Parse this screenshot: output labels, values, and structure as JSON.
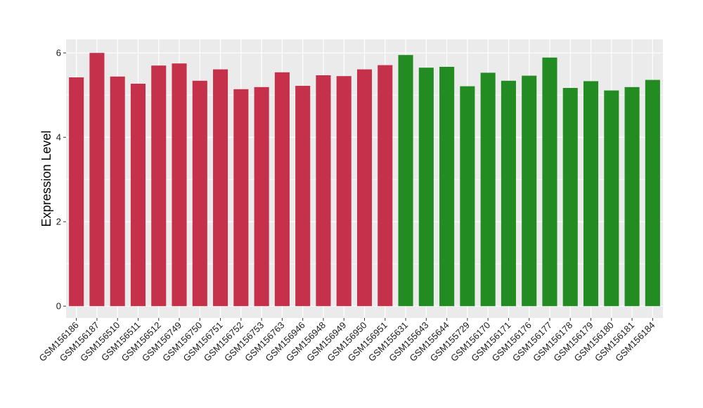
{
  "chart_data": {
    "type": "bar",
    "title": "",
    "xlabel": "",
    "ylabel": "Expression Level",
    "ylim": [
      -0.28,
      6.32
    ],
    "yticks": [
      0,
      2,
      4,
      6
    ],
    "grid": true,
    "legend": "none",
    "categories": [
      "GSM156186",
      "GSM156187",
      "GSM156510",
      "GSM156511",
      "GSM156512",
      "GSM156749",
      "GSM156750",
      "GSM156751",
      "GSM156752",
      "GSM156753",
      "GSM156763",
      "GSM156946",
      "GSM156948",
      "GSM156949",
      "GSM156950",
      "GSM156951",
      "GSM155631",
      "GSM155643",
      "GSM155644",
      "GSM155729",
      "GSM156170",
      "GSM156171",
      "GSM156176",
      "GSM156177",
      "GSM156178",
      "GSM156179",
      "GSM156180",
      "GSM156181",
      "GSM156184"
    ],
    "values": [
      5.42,
      6.0,
      5.44,
      5.27,
      5.7,
      5.75,
      5.34,
      5.61,
      5.14,
      5.19,
      5.54,
      5.22,
      5.47,
      5.45,
      5.61,
      5.71,
      5.95,
      5.65,
      5.67,
      5.21,
      5.53,
      5.34,
      5.46,
      5.89,
      5.17,
      5.33,
      5.11,
      5.19,
      5.36
    ],
    "groups": [
      0,
      0,
      0,
      0,
      0,
      0,
      0,
      0,
      0,
      0,
      0,
      0,
      0,
      0,
      0,
      0,
      1,
      1,
      1,
      1,
      1,
      1,
      1,
      1,
      1,
      1,
      1,
      1,
      1
    ],
    "group_colors": [
      "#c5314a",
      "#228b22"
    ]
  },
  "style": {
    "panel_background": "#ebebeb",
    "grid_color": "#ffffff"
  }
}
